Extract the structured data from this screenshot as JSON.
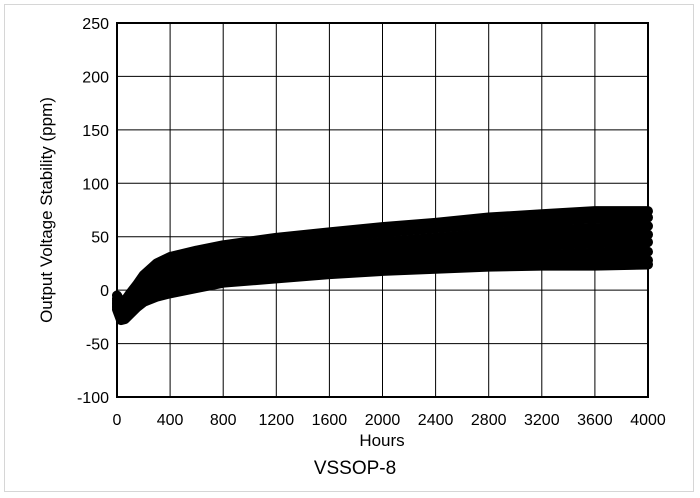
{
  "chart_data": {
    "type": "line",
    "title": "VSSOP-8",
    "xlabel": "Hours",
    "ylabel": "Output Voltage Stability (ppm)",
    "xlim": [
      0,
      4000
    ],
    "ylim": [
      -100,
      250
    ],
    "xticks": [
      0,
      400,
      800,
      1200,
      1600,
      2000,
      2400,
      2800,
      3200,
      3600,
      4000
    ],
    "yticks": [
      250,
      200,
      150,
      100,
      50,
      0,
      -50,
      -100
    ],
    "grid": true,
    "series_color": "#000000",
    "series": [
      {
        "x": [
          0,
          30,
          60,
          100,
          150,
          200,
          300,
          400,
          600,
          800,
          1200,
          1600,
          2000,
          2400,
          2800,
          3200,
          3600,
          4000
        ],
        "values": [
          -5,
          -12,
          -10,
          -3,
          5,
          14,
          25,
          31,
          37,
          42,
          49,
          54,
          59,
          63,
          68,
          71,
          74,
          74
        ]
      },
      {
        "x": [
          0,
          30,
          60,
          100,
          150,
          200,
          300,
          400,
          600,
          800,
          1200,
          1600,
          2000,
          2400,
          2800,
          3200,
          3600,
          4000
        ],
        "values": [
          -8,
          -15,
          -13,
          -7,
          0,
          7,
          18,
          25,
          31,
          37,
          44,
          49,
          54,
          58,
          62,
          65,
          67,
          68
        ]
      },
      {
        "x": [
          0,
          30,
          60,
          100,
          150,
          200,
          300,
          400,
          600,
          800,
          1200,
          1600,
          2000,
          2400,
          2800,
          3200,
          3600,
          4000
        ],
        "values": [
          -10,
          -18,
          -16,
          -10,
          -3,
          3,
          12,
          18,
          24,
          29,
          35,
          40,
          45,
          49,
          53,
          56,
          58,
          60
        ]
      },
      {
        "x": [
          0,
          30,
          60,
          100,
          150,
          200,
          300,
          400,
          600,
          800,
          1200,
          1600,
          2000,
          2400,
          2800,
          3200,
          3600,
          4000
        ],
        "values": [
          -12,
          -20,
          -18,
          -12,
          -6,
          0,
          8,
          13,
          19,
          24,
          30,
          35,
          39,
          42,
          45,
          48,
          50,
          52
        ]
      },
      {
        "x": [
          0,
          30,
          60,
          100,
          150,
          200,
          300,
          400,
          600,
          800,
          1200,
          1600,
          2000,
          2400,
          2800,
          3200,
          3600,
          4000
        ],
        "values": [
          -13,
          -22,
          -20,
          -14,
          -8,
          -3,
          4,
          9,
          14,
          19,
          25,
          29,
          33,
          36,
          39,
          42,
          44,
          45
        ]
      },
      {
        "x": [
          0,
          30,
          60,
          100,
          150,
          200,
          300,
          400,
          600,
          800,
          1200,
          1600,
          2000,
          2400,
          2800,
          3200,
          3600,
          4000
        ],
        "values": [
          -15,
          -25,
          -23,
          -17,
          -11,
          -6,
          0,
          4,
          9,
          13,
          18,
          22,
          26,
          29,
          31,
          33,
          35,
          36
        ]
      },
      {
        "x": [
          0,
          30,
          60,
          100,
          150,
          200,
          300,
          400,
          600,
          800,
          1200,
          1600,
          2000,
          2400,
          2800,
          3200,
          3600,
          4000
        ],
        "values": [
          -16,
          -27,
          -25,
          -20,
          -14,
          -9,
          -4,
          0,
          5,
          9,
          13,
          17,
          20,
          23,
          25,
          26,
          27,
          28
        ]
      },
      {
        "x": [
          0,
          30,
          60,
          100,
          150,
          200,
          300,
          400,
          600,
          800,
          1200,
          1600,
          2000,
          2400,
          2800,
          3200,
          3600,
          4000
        ],
        "values": [
          -18,
          -28,
          -27,
          -22,
          -16,
          -11,
          -6,
          -3,
          2,
          7,
          11,
          15,
          18,
          20,
          22,
          23,
          23,
          24
        ]
      }
    ]
  }
}
